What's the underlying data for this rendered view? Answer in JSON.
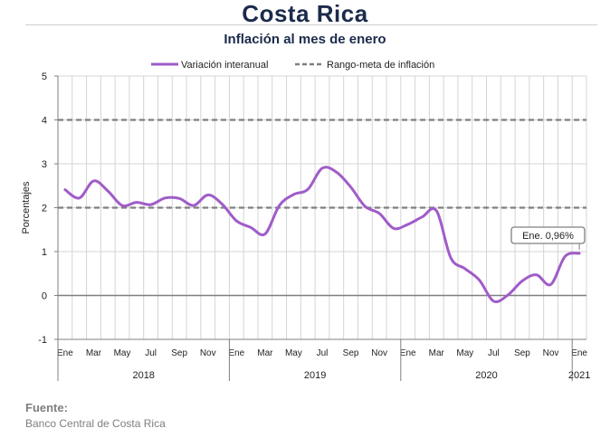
{
  "title": "Costa Rica",
  "subtitle": "Inflación al mes de enero",
  "source": {
    "label": "Fuente:",
    "text": "Banco Central de Costa Rica"
  },
  "colors": {
    "series": "#a05cc8",
    "target": "#7f7f7f",
    "title": "#1b2b4b"
  },
  "chart_data": {
    "type": "line",
    "title": "Inflación al mes de enero",
    "ylabel": "Porcentajes",
    "ylim": [
      -1,
      5
    ],
    "yticks": [
      -1,
      0,
      1,
      2,
      3,
      4,
      5
    ],
    "grid": true,
    "legend_position": "top",
    "x_tick_labels": [
      "Ene",
      "Mar",
      "May",
      "Jul",
      "Sep",
      "Nov",
      "Ene",
      "Mar",
      "May",
      "Jul",
      "Sep",
      "Nov",
      "Ene",
      "Mar",
      "May",
      "Jul",
      "Sep",
      "Nov",
      "Ene"
    ],
    "years": [
      "2018",
      "2019",
      "2020",
      "2021"
    ],
    "series": [
      {
        "name": "Variación interanual",
        "x": [
          "2018-01",
          "2018-02",
          "2018-03",
          "2018-04",
          "2018-05",
          "2018-06",
          "2018-07",
          "2018-08",
          "2018-09",
          "2018-10",
          "2018-11",
          "2018-12",
          "2019-01",
          "2019-02",
          "2019-03",
          "2019-04",
          "2019-05",
          "2019-06",
          "2019-07",
          "2019-08",
          "2019-09",
          "2019-10",
          "2019-11",
          "2019-12",
          "2020-01",
          "2020-02",
          "2020-03",
          "2020-04",
          "2020-05",
          "2020-06",
          "2020-07",
          "2020-08",
          "2020-09",
          "2020-10",
          "2020-11",
          "2020-12",
          "2021-01"
        ],
        "values": [
          2.41,
          2.22,
          2.61,
          2.38,
          2.05,
          2.12,
          2.07,
          2.22,
          2.21,
          2.05,
          2.29,
          2.08,
          1.7,
          1.55,
          1.4,
          2.05,
          2.3,
          2.42,
          2.9,
          2.81,
          2.47,
          2.03,
          1.87,
          1.53,
          1.62,
          1.79,
          1.93,
          0.86,
          0.61,
          0.35,
          -0.13,
          0.01,
          0.33,
          0.47,
          0.25,
          0.89,
          0.96
        ]
      },
      {
        "name": "Rango-meta de inflación",
        "upper": 4,
        "lower": 2
      }
    ],
    "annotation": "Ene. 0,96%"
  }
}
